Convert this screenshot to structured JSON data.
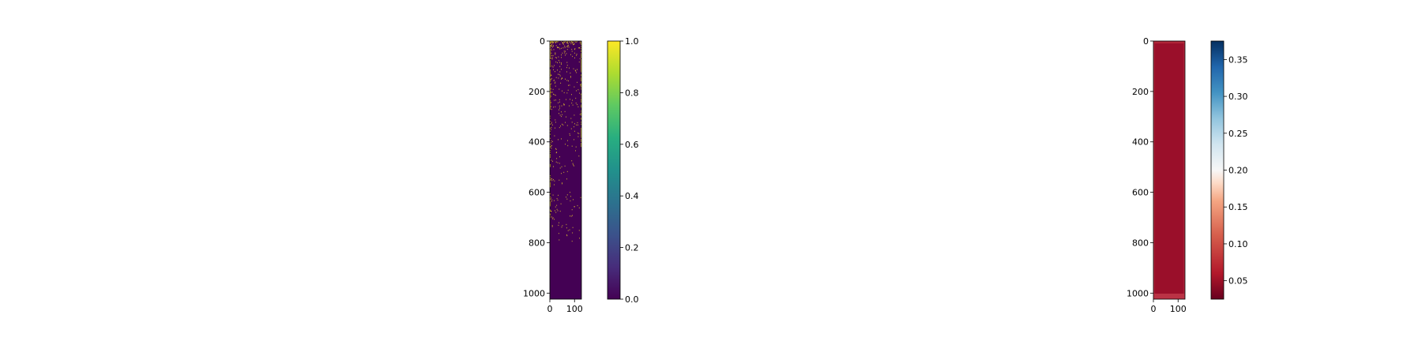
{
  "chart_data": [
    {
      "type": "heatmap",
      "colormap": "viridis",
      "title": "",
      "xlabel": "",
      "ylabel": "",
      "xlim": [
        0,
        128
      ],
      "ylim": [
        1024,
        0
      ],
      "x_ticks": [
        0,
        100
      ],
      "y_ticks": [
        0,
        200,
        400,
        600,
        800,
        1000
      ],
      "colorbar": {
        "range": [
          0.0,
          1.0
        ],
        "ticks": [
          "0.0",
          "0.2",
          "0.4",
          "0.6",
          "0.8",
          "1.0"
        ]
      },
      "description_values": {
        "background_value": 0.0,
        "highlight_value": 1.0,
        "left_column_active_rows": [
          0,
          700
        ],
        "right_column_active_rows": [
          0,
          420
        ],
        "scattered_density": "dense near top, sparse below row 500"
      }
    },
    {
      "type": "heatmap",
      "colormap": "RdBu",
      "title": "",
      "xlabel": "",
      "ylabel": "",
      "xlim": [
        0,
        128
      ],
      "ylim": [
        1024,
        0
      ],
      "x_ticks": [
        0,
        100
      ],
      "y_ticks": [
        0,
        200,
        400,
        600,
        800,
        1000
      ],
      "colorbar": {
        "range": [
          0.025,
          0.375
        ],
        "ticks": [
          "0.05",
          "0.10",
          "0.15",
          "0.20",
          "0.25",
          "0.30",
          "0.35"
        ]
      },
      "description_values": {
        "interior_value": 0.04,
        "edge_value": 0.09
      }
    }
  ],
  "colors": {
    "viridis_low": "#440154",
    "viridis_high": "#fde725",
    "rdbu_low": "#67001f",
    "rdbu_mid": "#f7f7f7",
    "rdbu_high": "#053061",
    "axis": "#000000"
  }
}
